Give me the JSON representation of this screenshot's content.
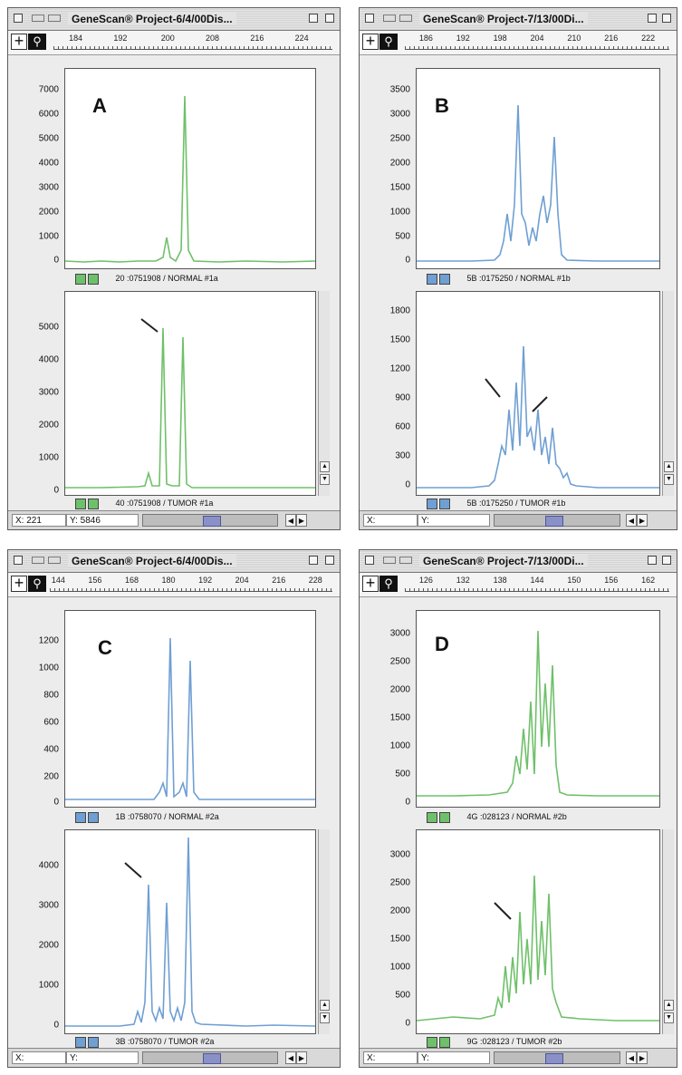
{
  "colors": {
    "green": "#6fc06a",
    "blue": "#6f9fd3"
  },
  "windows": [
    {
      "id": "A",
      "title": "GeneScan® Project-6/4/00Dis...",
      "ruler": [
        "184",
        "192",
        "200",
        "208",
        "216",
        "224"
      ],
      "letter": "A",
      "color": "green",
      "top_pane": {
        "yticks": [
          "7000",
          "6000",
          "5000",
          "4000",
          "3000",
          "2000",
          "1000",
          "0"
        ],
        "caption": "20 :0751908 / NORMAL #1a"
      },
      "bottom_pane": {
        "yticks": [
          "5000",
          "4000",
          "3000",
          "2000",
          "1000",
          "0"
        ],
        "caption": "40 :0751908 / TUMOR #1a"
      },
      "status": {
        "x": "X: 221",
        "y": "Y: 5846"
      }
    },
    {
      "id": "B",
      "title": "GeneScan® Project-7/13/00Di...",
      "ruler": [
        "186",
        "192",
        "198",
        "204",
        "210",
        "216",
        "222"
      ],
      "letter": "B",
      "color": "blue",
      "top_pane": {
        "yticks": [
          "3500",
          "3000",
          "2500",
          "2000",
          "1500",
          "1000",
          "500",
          "0"
        ],
        "caption": "5B :0175250 / NORMAL #1b"
      },
      "bottom_pane": {
        "yticks": [
          "1800",
          "1500",
          "1200",
          "900",
          "600",
          "300",
          "0"
        ],
        "caption": "5B :0175250 / TUMOR #1b"
      },
      "status": {
        "x": "X:",
        "y": "Y:"
      }
    },
    {
      "id": "C",
      "title": "GeneScan® Project-6/4/00Dis...",
      "ruler": [
        "144",
        "156",
        "168",
        "180",
        "192",
        "204",
        "216",
        "228"
      ],
      "letter": "C",
      "color": "blue",
      "top_pane": {
        "yticks": [
          "1200",
          "1000",
          "800",
          "600",
          "400",
          "200",
          "0"
        ],
        "caption": "1B :0758070 / NORMAL #2a"
      },
      "bottom_pane": {
        "yticks": [
          "4000",
          "3000",
          "2000",
          "1000",
          "0"
        ],
        "caption": "3B :0758070 / TUMOR #2a"
      },
      "status": {
        "x": "X:",
        "y": "Y:"
      }
    },
    {
      "id": "D",
      "title": "GeneScan® Project-7/13/00Di...",
      "ruler": [
        "126",
        "132",
        "138",
        "144",
        "150",
        "156",
        "162"
      ],
      "letter": "D",
      "color": "green",
      "top_pane": {
        "yticks": [
          "3000",
          "2500",
          "2000",
          "1500",
          "1000",
          "500",
          "0"
        ],
        "caption": "4G :028123 / NORMAL #2b"
      },
      "bottom_pane": {
        "yticks": [
          "3000",
          "2500",
          "2000",
          "1500",
          "1000",
          "500",
          "0"
        ],
        "caption": "9G :028123 / TUMOR #2b"
      },
      "status": {
        "x": "X:",
        "y": "Y:"
      }
    }
  ]
}
